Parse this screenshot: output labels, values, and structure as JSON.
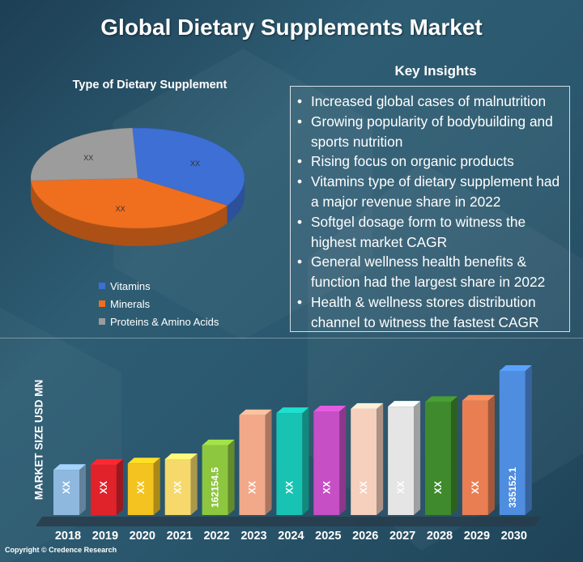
{
  "title": "Global Dietary Supplements Market",
  "pie_title": "Type of Dietary Supplement",
  "insights_title": "Key Insights",
  "insights": [
    "Increased global cases of malnutrition",
    "Growing popularity of bodybuilding and sports nutrition",
    "Rising focus on organic products",
    "Vitamins type of dietary supplement had a major revenue share in 2022",
    "Softgel dosage form to witness the highest market CAGR",
    "General wellness health benefits & function had the largest share in 2022",
    "Health & wellness stores distribution channel to witness the fastest CAGR"
  ],
  "copyright": "Copyright © Credence Research",
  "chart_data": [
    {
      "type": "pie",
      "title": "Type of Dietary Supplement",
      "slices": [
        {
          "name": "Vitamins",
          "value": 35,
          "label": "XX",
          "color": "#3d6fd4"
        },
        {
          "name": "Minerals",
          "value": 40,
          "label": "XX",
          "color": "#ef6f1f"
        },
        {
          "name": "Proteins & Amino Acids",
          "value": 25,
          "label": "XX",
          "color": "#9c9c9c"
        }
      ],
      "legend": "bottom"
    },
    {
      "type": "bar",
      "ylabel": "MARKET SIZE USD MN",
      "categories": [
        "2018",
        "2019",
        "2020",
        "2021",
        "2022",
        "2023",
        "2024",
        "2025",
        "2026",
        "2027",
        "2028",
        "2029",
        "2030"
      ],
      "values": [
        105000,
        117000,
        120000,
        130000,
        162154.5,
        232000,
        237000,
        241000,
        247000,
        252000,
        263000,
        266000,
        335152.1
      ],
      "labels": [
        "XX",
        "XX",
        "XX",
        "XX",
        "162154.5",
        "XX",
        "XX",
        "XX",
        "XX",
        "XX",
        "XX",
        "XX",
        "335152.1"
      ],
      "colors": [
        "#8fb8de",
        "#e0222a",
        "#f3c31f",
        "#f6d96a",
        "#8dc63f",
        "#f2a98a",
        "#19c3b3",
        "#c64fc5",
        "#f6d0bd",
        "#e5e5e5",
        "#3f8a2c",
        "#e97e53",
        "#4e8de0"
      ]
    }
  ]
}
